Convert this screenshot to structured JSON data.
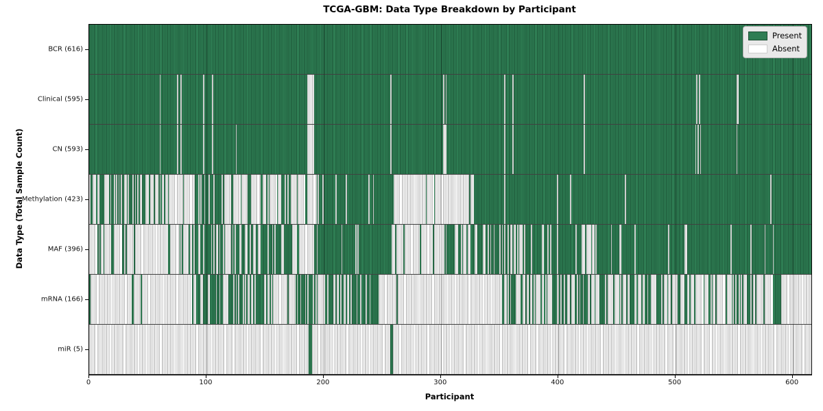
{
  "chart_data": {
    "type": "heatmap",
    "title": "TCGA-GBM: Data Type Breakdown by Participant",
    "xlabel": "Participant",
    "ylabel": "Data Type (Total Sample Count)",
    "x_range": [
      0,
      616
    ],
    "x_ticks": [
      0,
      100,
      200,
      300,
      400,
      500,
      600
    ],
    "grid": "vertical ticks faint",
    "legend_position": "upper right",
    "legend": [
      {
        "label": "Present",
        "key": "present"
      },
      {
        "label": "Absent",
        "key": "absent"
      }
    ],
    "colors": {
      "present_fill": "#2e7d53",
      "present_edge": "#1b4e33",
      "absent_fill": "#fcfcfc",
      "absent_edge": "#9c9c9c",
      "row_separator": "rgba(0,0,0,0.75)",
      "legend_bg": "#e9e9e9",
      "legend_border": "#b0b0b0"
    },
    "rows": [
      {
        "name": "BCR",
        "total": 616,
        "label": "BCR (616)",
        "segments": [
          {
            "start": 0,
            "end": 616,
            "absent": 0
          }
        ],
        "absent_columns": [],
        "present_columns": []
      },
      {
        "name": "Clinical",
        "total": 595,
        "label": "Clinical (595)",
        "segments": [
          {
            "start": 0,
            "end": 616,
            "absent": 0
          }
        ],
        "absent_columns": [
          60,
          75,
          78,
          97,
          105,
          186,
          187,
          188,
          189,
          190,
          191,
          257,
          302,
          304,
          354,
          361,
          422,
          518,
          520,
          552,
          553
        ],
        "present_columns": []
      },
      {
        "name": "CN",
        "total": 593,
        "label": "CN (593)",
        "segments": [
          {
            "start": 0,
            "end": 616,
            "absent": 0
          }
        ],
        "absent_columns": [
          60,
          75,
          78,
          97,
          105,
          125,
          186,
          187,
          188,
          189,
          190,
          191,
          257,
          302,
          303,
          304,
          354,
          361,
          422,
          517,
          519,
          521,
          552
        ],
        "present_columns": []
      },
      {
        "name": "Methylation",
        "total": 423,
        "label": "Methylation (423)",
        "segments": [
          {
            "start": 0,
            "end": 57,
            "absent": 0.45
          },
          {
            "start": 57,
            "end": 90,
            "absent": 0.85
          },
          {
            "start": 90,
            "end": 113,
            "absent": 0.2
          },
          {
            "start": 113,
            "end": 172,
            "absent": 0.7
          },
          {
            "start": 172,
            "end": 197,
            "absent": 0.92
          },
          {
            "start": 197,
            "end": 247,
            "absent": 0.12
          },
          {
            "start": 247,
            "end": 260,
            "absent": 0.05
          },
          {
            "start": 260,
            "end": 328,
            "absent": 0.97
          },
          {
            "start": 328,
            "end": 616,
            "absent": 0.01
          }
        ],
        "absent_columns": [
          354,
          410
        ],
        "present_columns": [
          185
        ]
      },
      {
        "name": "MAF",
        "total": 396,
        "label": "MAF (396)",
        "segments": [
          {
            "start": 0,
            "end": 88,
            "absent": 0.9
          },
          {
            "start": 88,
            "end": 160,
            "absent": 0.35
          },
          {
            "start": 160,
            "end": 172,
            "absent": 0.15
          },
          {
            "start": 172,
            "end": 186,
            "absent": 0.75
          },
          {
            "start": 186,
            "end": 192,
            "absent": 0.9
          },
          {
            "start": 192,
            "end": 258,
            "absent": 0.08
          },
          {
            "start": 258,
            "end": 305,
            "absent": 0.93
          },
          {
            "start": 305,
            "end": 420,
            "absent": 0.28
          },
          {
            "start": 420,
            "end": 433,
            "absent": 0.62
          },
          {
            "start": 433,
            "end": 616,
            "absent": 0.06
          }
        ],
        "absent_columns": [],
        "present_columns": []
      },
      {
        "name": "mRNA",
        "total": 166,
        "label": "mRNA (166)",
        "segments": [
          {
            "start": 0,
            "end": 88,
            "absent": 0.95
          },
          {
            "start": 88,
            "end": 150,
            "absent": 0.5
          },
          {
            "start": 150,
            "end": 178,
            "absent": 0.85
          },
          {
            "start": 178,
            "end": 248,
            "absent": 0.42
          },
          {
            "start": 248,
            "end": 345,
            "absent": 0.96
          },
          {
            "start": 345,
            "end": 420,
            "absent": 0.63
          },
          {
            "start": 420,
            "end": 460,
            "absent": 0.6
          },
          {
            "start": 460,
            "end": 545,
            "absent": 0.62
          },
          {
            "start": 545,
            "end": 583,
            "absent": 0.58
          },
          {
            "start": 583,
            "end": 590,
            "absent": 0.05
          },
          {
            "start": 590,
            "end": 616,
            "absent": 0.99
          }
        ],
        "absent_columns": [],
        "present_columns": []
      },
      {
        "name": "miR",
        "total": 5,
        "label": "miR (5)",
        "segments": [
          {
            "start": 0,
            "end": 616,
            "absent": 1
          }
        ],
        "absent_columns": [],
        "present_columns": [
          187,
          188,
          189,
          257,
          258
        ]
      }
    ]
  }
}
